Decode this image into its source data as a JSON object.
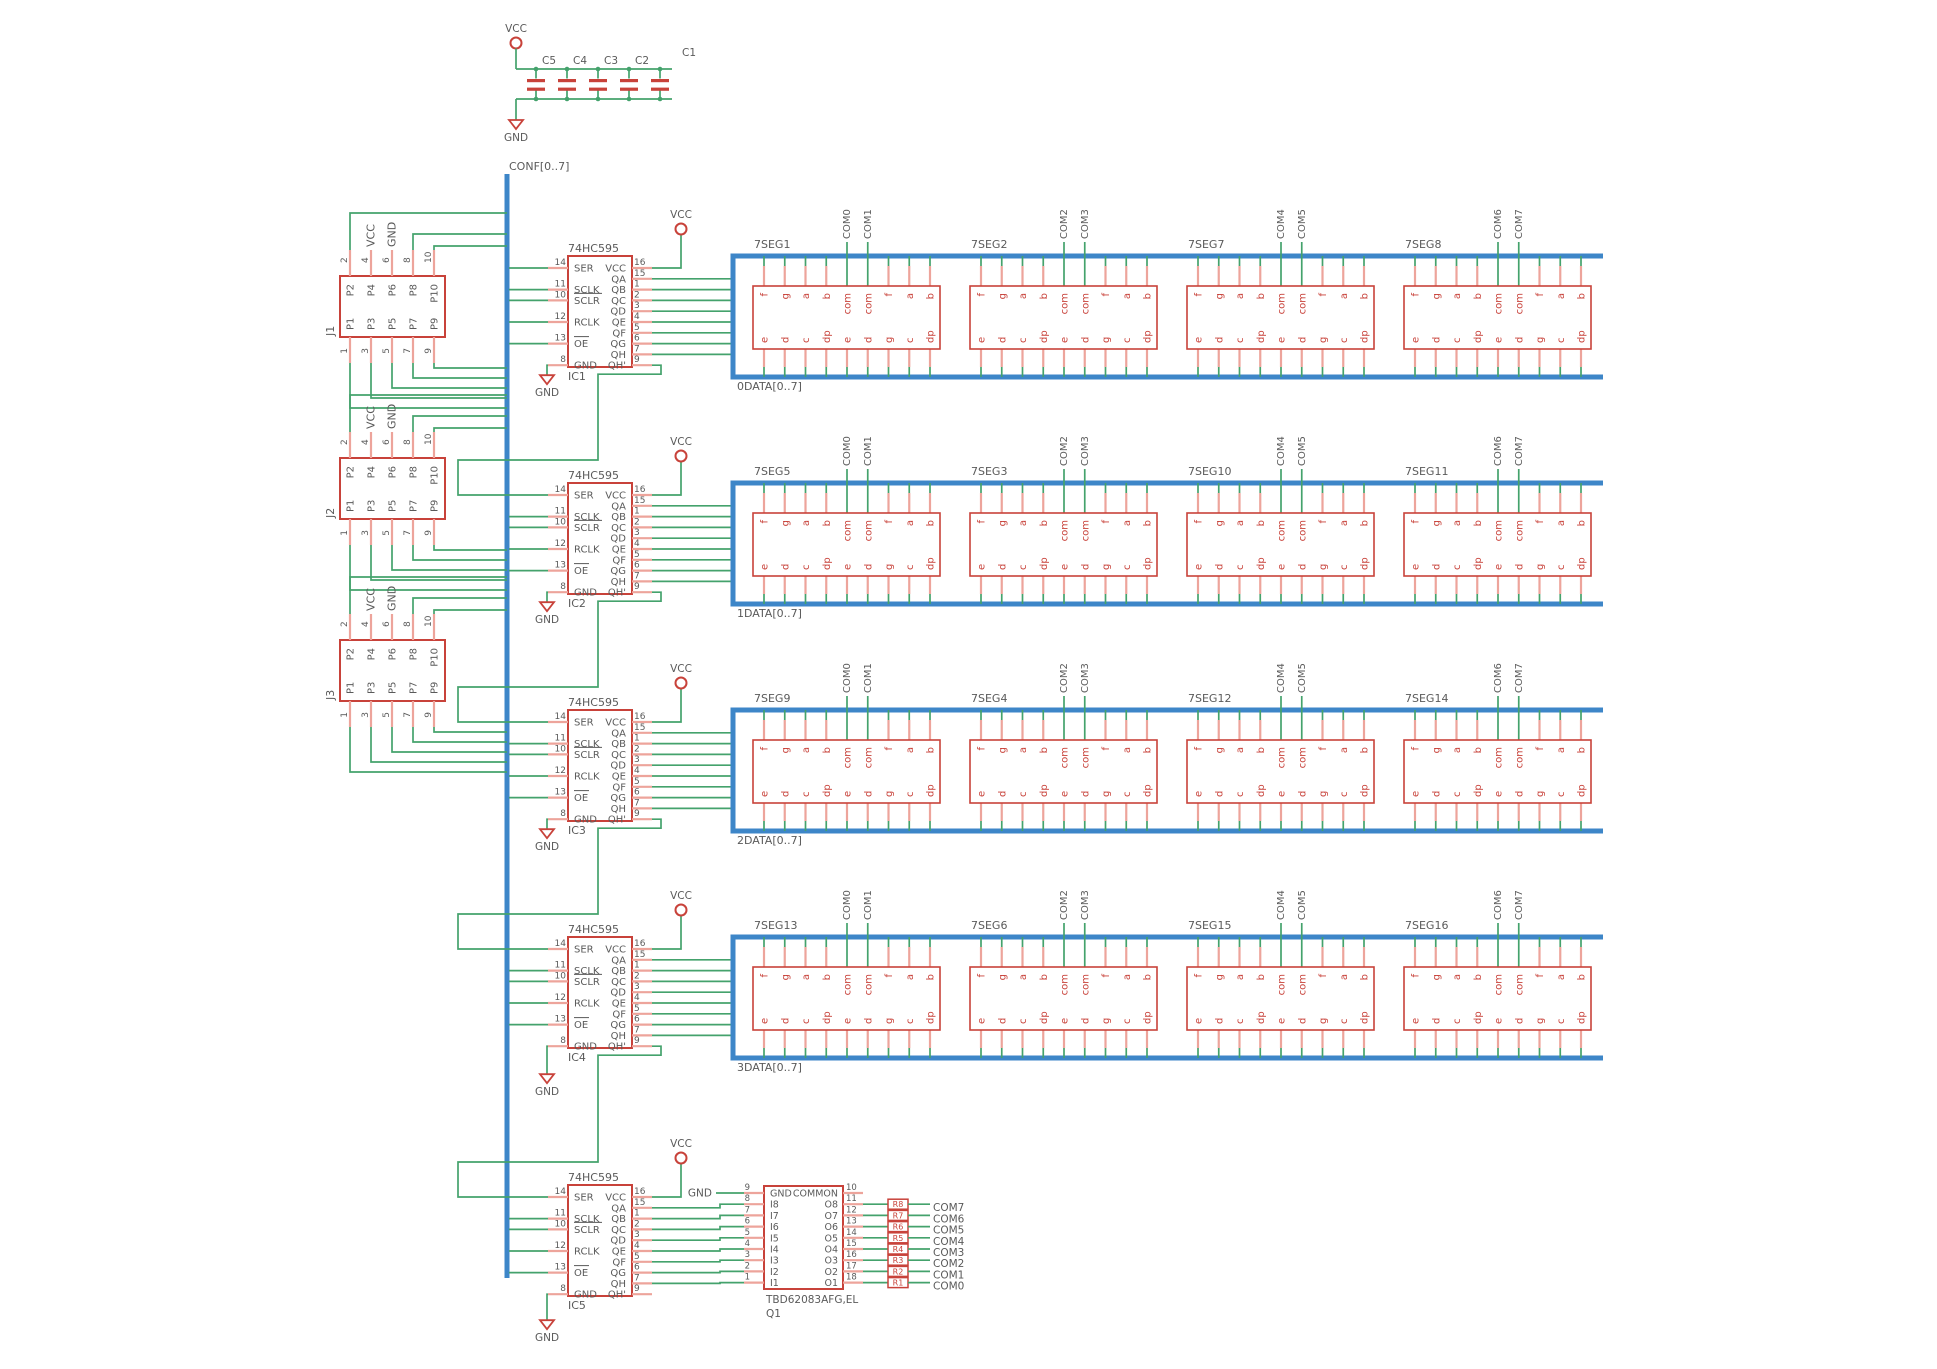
{
  "colors": {
    "wire": "#44A26C",
    "pin": "#EDA49B",
    "part": "#C8423A",
    "red_text": "#C8423A",
    "bus": "#3D86C8",
    "text": "#5A5A5A",
    "background": "#FFFFFF"
  },
  "power": {
    "vcc": "VCC",
    "gnd": "GND",
    "capacitors": [
      "C5",
      "C4",
      "C3",
      "C2",
      "C1"
    ]
  },
  "buses": {
    "conf": "CONF[0..7]"
  },
  "connectors": {
    "names": [
      "J1",
      "J2",
      "J3"
    ],
    "vcc_label": "VCC",
    "gnd_label": "GND",
    "top_pins": [
      {
        "num": "2",
        "name": "P2"
      },
      {
        "num": "4",
        "name": "P4"
      },
      {
        "num": "6",
        "name": "P6"
      },
      {
        "num": "8",
        "name": "P8"
      },
      {
        "num": "10",
        "name": "P10"
      }
    ],
    "bottom_pins": [
      {
        "num": "1",
        "name": "P1"
      },
      {
        "num": "3",
        "name": "P3"
      },
      {
        "num": "5",
        "name": "P5"
      },
      {
        "num": "7",
        "name": "P7"
      },
      {
        "num": "9",
        "name": "P9"
      }
    ]
  },
  "shift_registers": {
    "part": "74HC595",
    "names": [
      "IC1",
      "IC2",
      "IC3",
      "IC4",
      "IC5"
    ],
    "vcc_label": "VCC",
    "gnd_label": "GND",
    "left_pins": [
      {
        "row": 0,
        "num": "14",
        "name": "SER",
        "overline": false
      },
      {
        "row": 2,
        "num": "11",
        "name": "SCLK",
        "overline": false
      },
      {
        "row": 3,
        "num": "10",
        "name": "SCLR",
        "overline": true
      },
      {
        "row": 5,
        "num": "12",
        "name": "RCLK",
        "overline": false
      },
      {
        "row": 7,
        "num": "13",
        "name": "OE",
        "overline": true
      },
      {
        "row": 9,
        "num": "8",
        "name": "GND",
        "overline": false
      }
    ],
    "right_pins": [
      {
        "num": "16",
        "name": "VCC"
      },
      {
        "num": "15",
        "name": "QA"
      },
      {
        "num": "1",
        "name": "QB"
      },
      {
        "num": "2",
        "name": "QC"
      },
      {
        "num": "3",
        "name": "QD"
      },
      {
        "num": "4",
        "name": "QE"
      },
      {
        "num": "5",
        "name": "QF"
      },
      {
        "num": "6",
        "name": "QG"
      },
      {
        "num": "7",
        "name": "QH"
      },
      {
        "num": "9",
        "name": "QH'"
      }
    ]
  },
  "displays": {
    "top_pin_names": [
      "f",
      "g",
      "a",
      "b",
      "com",
      "com",
      "f",
      "a",
      "b"
    ],
    "bottom_pin_names": [
      "e",
      "d",
      "c",
      "dp",
      "e",
      "d",
      "g",
      "c",
      "dp"
    ],
    "rows": [
      {
        "bus_label": "0DATA[0..7]",
        "names": [
          "7SEG1",
          "7SEG2",
          "7SEG7",
          "7SEG8"
        ]
      },
      {
        "bus_label": "1DATA[0..7]",
        "names": [
          "7SEG5",
          "7SEG3",
          "7SEG10",
          "7SEG11"
        ]
      },
      {
        "bus_label": "2DATA[0..7]",
        "names": [
          "7SEG9",
          "7SEG4",
          "7SEG12",
          "7SEG14"
        ]
      },
      {
        "bus_label": "3DATA[0..7]",
        "names": [
          "7SEG13",
          "7SEG6",
          "7SEG15",
          "7SEG16"
        ]
      }
    ]
  },
  "com_labels": [
    "COM0",
    "COM1",
    "COM2",
    "COM3",
    "COM4",
    "COM5",
    "COM6",
    "COM7"
  ],
  "driver": {
    "part": "TBD62083AFG,EL",
    "name": "Q1",
    "gnd_net": "GND",
    "left_pins": [
      {
        "num": "9",
        "name": "GND"
      },
      {
        "num": "8",
        "name": "I8"
      },
      {
        "num": "7",
        "name": "I7"
      },
      {
        "num": "6",
        "name": "I6"
      },
      {
        "num": "5",
        "name": "I5"
      },
      {
        "num": "4",
        "name": "I4"
      },
      {
        "num": "3",
        "name": "I3"
      },
      {
        "num": "2",
        "name": "I2"
      },
      {
        "num": "1",
        "name": "I1"
      }
    ],
    "right_pins": [
      {
        "num": "10",
        "name": "COMMON"
      },
      {
        "num": "11",
        "name": "O8"
      },
      {
        "num": "12",
        "name": "O7"
      },
      {
        "num": "13",
        "name": "O6"
      },
      {
        "num": "14",
        "name": "O5"
      },
      {
        "num": "15",
        "name": "O4"
      },
      {
        "num": "16",
        "name": "O3"
      },
      {
        "num": "17",
        "name": "O2"
      },
      {
        "num": "18",
        "name": "O1"
      }
    ]
  },
  "resistors": [
    "R8",
    "R7",
    "R6",
    "R5",
    "R4",
    "R3",
    "R2",
    "R1"
  ],
  "com_outputs": [
    "COM7",
    "COM6",
    "COM5",
    "COM4",
    "COM3",
    "COM2",
    "COM1",
    "COM0"
  ]
}
